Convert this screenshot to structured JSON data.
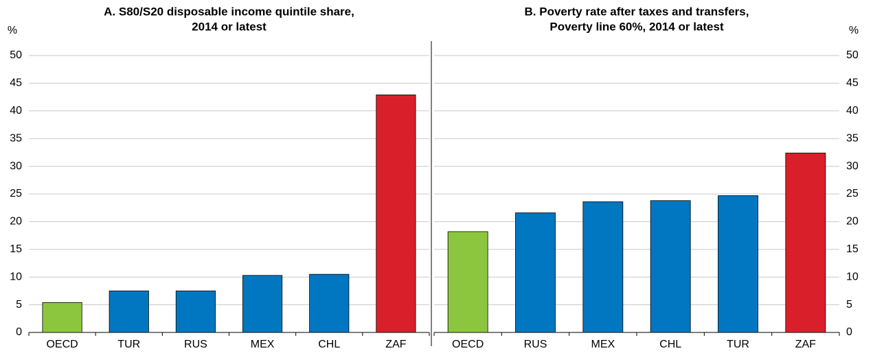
{
  "chart_data": [
    {
      "type": "bar",
      "title": [
        "A. S80/S20 disposable income quintile share,",
        "2014 or latest"
      ],
      "ylabel": "%",
      "y_axis_side": "left",
      "categories": [
        "OECD",
        "TUR",
        "RUS",
        "MEX",
        "CHL",
        "ZAF"
      ],
      "values": [
        5.4,
        7.5,
        7.5,
        10.3,
        10.5,
        42.9
      ],
      "colors": [
        "#8cc63f",
        "#0077c0",
        "#0077c0",
        "#0077c0",
        "#0077c0",
        "#d9202a"
      ],
      "ylim": [
        0,
        50
      ],
      "yticks": [
        0,
        5,
        10,
        15,
        20,
        25,
        30,
        35,
        40,
        45,
        50
      ],
      "grid": true
    },
    {
      "type": "bar",
      "title": [
        "B. Poverty rate after taxes and transfers,",
        "Poverty line 60%, 2014 or latest"
      ],
      "ylabel": "%",
      "y_axis_side": "right",
      "categories": [
        "OECD",
        "RUS",
        "MEX",
        "CHL",
        "TUR",
        "ZAF"
      ],
      "values": [
        18.2,
        21.6,
        23.6,
        23.8,
        24.7,
        32.4
      ],
      "colors": [
        "#8cc63f",
        "#0077c0",
        "#0077c0",
        "#0077c0",
        "#0077c0",
        "#d9202a"
      ],
      "ylim": [
        0,
        50
      ],
      "yticks": [
        0,
        5,
        10,
        15,
        20,
        25,
        30,
        35,
        40,
        45,
        50
      ],
      "grid": true
    }
  ]
}
